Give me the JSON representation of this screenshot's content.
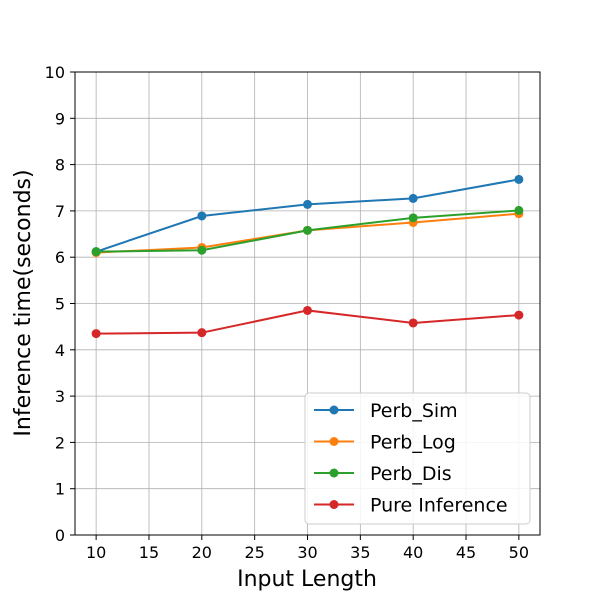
{
  "chart_data": {
    "type": "line",
    "title": "",
    "xlabel": "Input Length",
    "ylabel": "Inference time(seconds)",
    "x": [
      10,
      20,
      30,
      40,
      50
    ],
    "xlim": [
      8,
      52
    ],
    "ylim": [
      0,
      10
    ],
    "xticks": [
      10,
      15,
      20,
      25,
      30,
      35,
      40,
      45,
      50
    ],
    "yticks": [
      0,
      1,
      2,
      3,
      4,
      5,
      6,
      7,
      8,
      9,
      10
    ],
    "grid": true,
    "legend_position": "bottom-right",
    "series": [
      {
        "name": "Perb_Sim",
        "color": "#1f77b4",
        "values": [
          6.12,
          6.89,
          7.14,
          7.27,
          7.68
        ]
      },
      {
        "name": "Perb_Log",
        "color": "#ff7f0e",
        "values": [
          6.1,
          6.21,
          6.58,
          6.75,
          6.94
        ]
      },
      {
        "name": "Perb_Dis",
        "color": "#2ca02c",
        "values": [
          6.12,
          6.15,
          6.58,
          6.85,
          7.01
        ]
      },
      {
        "name": "Pure Inference",
        "color": "#d62728",
        "values": [
          4.35,
          4.37,
          4.85,
          4.58,
          4.75
        ]
      }
    ]
  }
}
